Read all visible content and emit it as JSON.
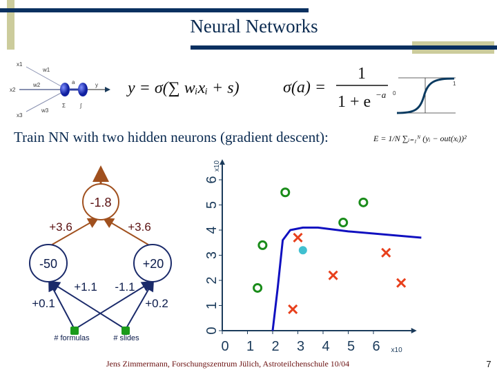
{
  "title": "Neural Networks",
  "neuron": {
    "x1": "x1",
    "x2": "x2",
    "x3": "x3",
    "w1": "w1",
    "w2": "w2",
    "w3": "w3",
    "a": "a",
    "y": "y",
    "sum": "Σ",
    "act": "∫"
  },
  "formula_output": "y = σ(∑ wᵢxᵢ + s)",
  "formula_sigmoid_lhs": "σ(a) =",
  "formula_sigmoid_num": "1",
  "formula_sigmoid_den": "1 + e",
  "formula_sigmoid_exp": "−a",
  "sigmoid_plot": {
    "low": "0",
    "high": "1"
  },
  "subtitle": "Train NN with two hidden neurons (gradient descent):",
  "error_formula": "E = 1/N ∑ᵢ₌₁ᴺ (yᵢ − out(xᵢ))²",
  "network": {
    "output_bias": "-1.8",
    "w_left_out": "+3.6",
    "w_right_out": "+3.6",
    "hidden_left_bias": "-50",
    "hidden_right_bias": "+20",
    "w_f_left": "+0.1",
    "w_s_left": "+1.1",
    "w_f_right": "-1.1",
    "w_s_right": "+0.2",
    "input_formulas": "#  formulas",
    "input_slides": "# slides"
  },
  "chart_data": {
    "type": "scatter",
    "xlim": [
      0,
      7.5
    ],
    "ylim": [
      0,
      6.6
    ],
    "xticks": [
      "0",
      "1",
      "2",
      "3",
      "4",
      "5",
      "6"
    ],
    "yticks": [
      "0",
      "1",
      "2",
      "3",
      "4",
      "5",
      "6"
    ],
    "x_multiplier": "x10",
    "y_multiplier": "x10",
    "class_o": {
      "color": "#1a8c1a",
      "points": [
        [
          1.4,
          1.7
        ],
        [
          1.6,
          3.4
        ],
        [
          2.5,
          5.5
        ],
        [
          4.8,
          4.3
        ],
        [
          5.6,
          5.1
        ]
      ]
    },
    "class_x": {
      "color": "#e8401c",
      "points": [
        [
          3.0,
          3.7
        ],
        [
          2.8,
          0.85
        ],
        [
          4.4,
          2.2
        ],
        [
          6.5,
          3.1
        ],
        [
          7.1,
          1.9
        ]
      ]
    },
    "query_point": {
      "color": "#40c0d0",
      "point": [
        3.2,
        3.2
      ]
    },
    "decision_boundary": {
      "color": "#1010c0",
      "points": [
        [
          2.0,
          0
        ],
        [
          2.2,
          1.7
        ],
        [
          2.4,
          3.6
        ],
        [
          2.7,
          4.0
        ],
        [
          3.2,
          4.1
        ],
        [
          3.8,
          4.1
        ],
        [
          5.0,
          3.95
        ],
        [
          7.9,
          3.7
        ]
      ]
    }
  },
  "footer": "Jens Zimmermann, Forschungszentrum Jülich, Astroteilchenschule 10/04",
  "page_number": "7"
}
